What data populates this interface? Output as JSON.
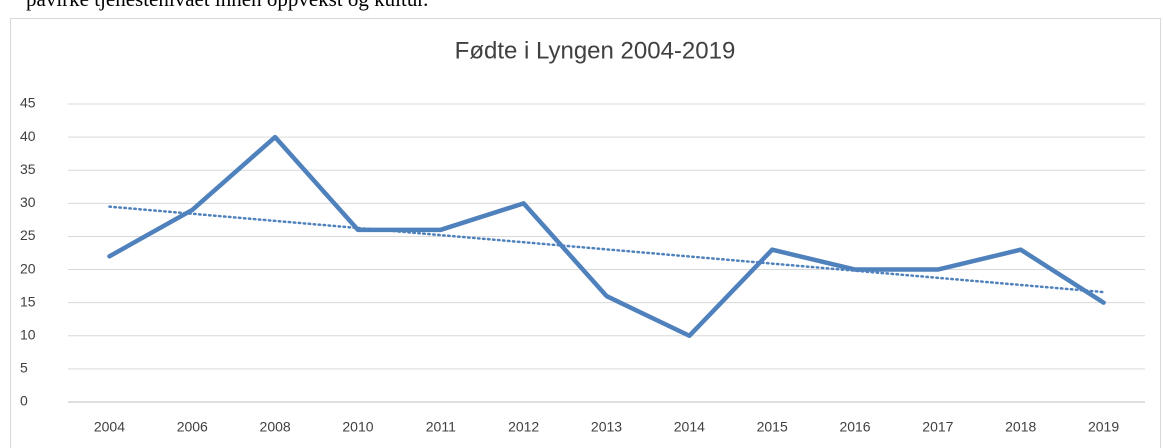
{
  "document": {
    "text": "påvirke tjenestenivået innen oppvekst og kultur."
  },
  "chart_data": {
    "type": "line",
    "title": "Fødte i Lyngen 2004-2019",
    "categories": [
      "2004",
      "2006",
      "2008",
      "2010",
      "2011",
      "2012",
      "2013",
      "2014",
      "2015",
      "2016",
      "2017",
      "2018",
      "2019"
    ],
    "series": [
      {
        "color": "#4f81bd",
        "values": [
          22,
          29,
          40,
          26,
          26,
          30,
          16,
          10,
          23,
          20,
          20,
          23,
          15
        ]
      }
    ],
    "trendline": {
      "color": "#4f81bd",
      "values": [
        29.5,
        16.6
      ]
    },
    "ylim": [
      0,
      45
    ],
    "yticks": [
      0,
      5,
      10,
      15,
      20,
      25,
      30,
      35,
      40,
      45
    ],
    "grid": true
  }
}
